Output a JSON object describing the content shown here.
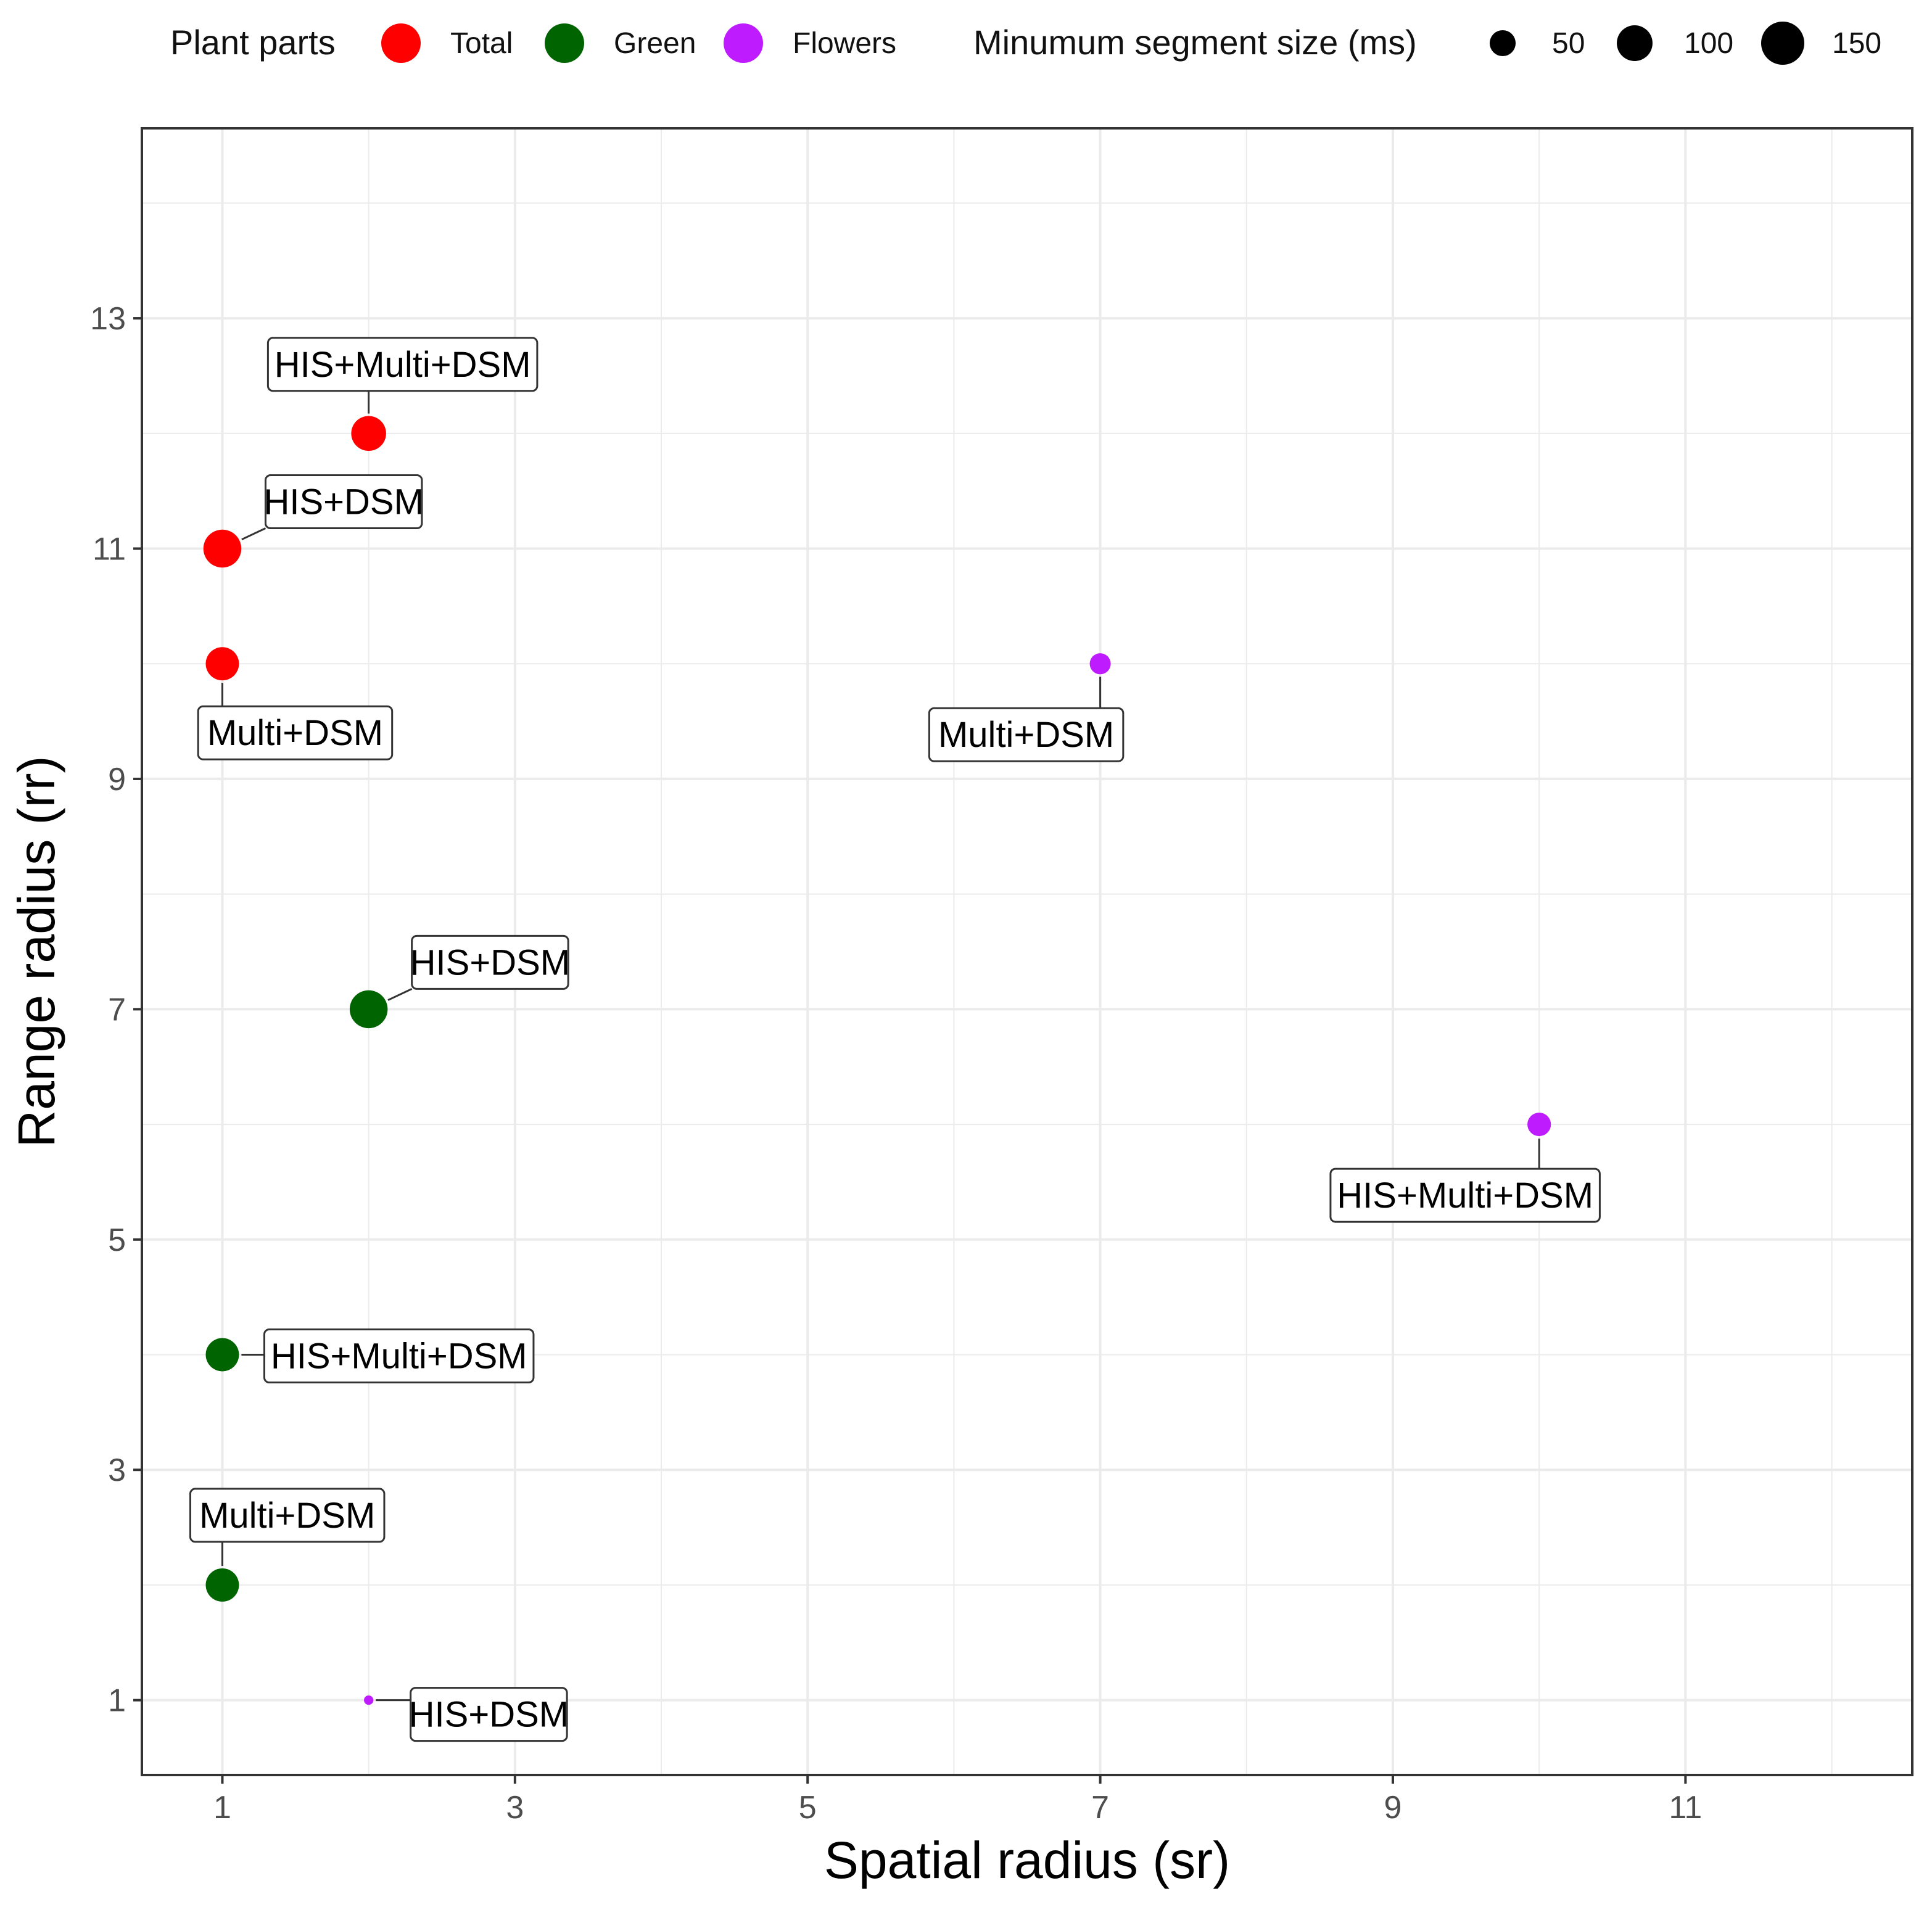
{
  "chart_data": {
    "type": "scatter",
    "title": "",
    "xlabel": "Spatial radius (sr)",
    "ylabel": "Range radius (rr)",
    "xlim": [
      0.45,
      12.55
    ],
    "ylim": [
      0.35,
      14.65
    ],
    "x_ticks": [
      1,
      3,
      5,
      7,
      9,
      11
    ],
    "y_ticks": [
      1,
      3,
      5,
      7,
      9,
      11,
      13
    ],
    "grid": true,
    "legend_position": "top",
    "color_legend": {
      "title": "Plant parts",
      "entries": [
        {
          "label": "Total",
          "color": "#ff0000"
        },
        {
          "label": "Green",
          "color": "#006400"
        },
        {
          "label": "Flowers",
          "color": "#bf1bff"
        }
      ]
    },
    "size_legend": {
      "title": "Minumum segment size (ms)",
      "entries": [
        {
          "label": "50",
          "value": 50
        },
        {
          "label": "100",
          "value": 100
        },
        {
          "label": "150",
          "value": 150
        }
      ]
    },
    "size_domain": [
      0,
      150
    ],
    "points": [
      {
        "x": 2,
        "y": 12,
        "part": "Total",
        "ms": 110,
        "label": "HIS+Multi+DSM",
        "label_pos": "above"
      },
      {
        "x": 1,
        "y": 11,
        "part": "Total",
        "ms": 130,
        "label": "HIS+DSM",
        "label_pos": "above-right"
      },
      {
        "x": 1,
        "y": 10,
        "part": "Total",
        "ms": 100,
        "label": "Multi+DSM",
        "label_pos": "below"
      },
      {
        "x": 7,
        "y": 10,
        "part": "Flowers",
        "ms": 40,
        "label": "Multi+DSM",
        "label_pos": "below-left"
      },
      {
        "x": 2,
        "y": 7,
        "part": "Green",
        "ms": 130,
        "label": "HIS+DSM",
        "label_pos": "above-right"
      },
      {
        "x": 10,
        "y": 6,
        "part": "Flowers",
        "ms": 50,
        "label": "HIS+Multi+DSM",
        "label_pos": "below-left"
      },
      {
        "x": 1,
        "y": 4,
        "part": "Green",
        "ms": 100,
        "label": "HIS+Multi+DSM",
        "label_pos": "right"
      },
      {
        "x": 1,
        "y": 2,
        "part": "Green",
        "ms": 100,
        "label": "Multi+DSM",
        "label_pos": "above"
      },
      {
        "x": 2,
        "y": 1,
        "part": "Flowers",
        "ms": 8,
        "label": "HIS+DSM",
        "label_pos": "right"
      }
    ]
  }
}
